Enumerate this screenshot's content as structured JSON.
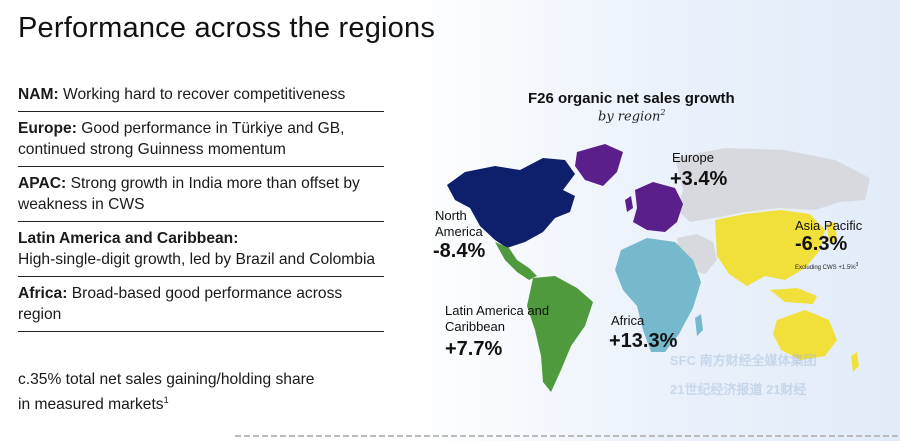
{
  "title": "Performance across the regions",
  "bullets": [
    {
      "label": "NAM:",
      "text": " Working hard to recover competitiveness"
    },
    {
      "label": "Europe:",
      "text": " Good performance in Türkiye and GB, continued strong Guinness momentum"
    },
    {
      "label": "APAC:",
      "text": " Strong growth in India more than offset by weakness in CWS"
    },
    {
      "label": "Latin America and Caribbean:",
      "text": " High-single-digit growth, led by Brazil and Colombia"
    },
    {
      "label": "Africa:",
      "text": " Broad-based good performance across region"
    }
  ],
  "share": {
    "text": "c.35% total net sales gaining/holding share in measured markets",
    "sup": "1"
  },
  "map_chart": {
    "title": "F26 organic net sales growth",
    "subtitle": "by region",
    "subtitle_sup": "2",
    "regions": [
      {
        "name": "North America",
        "value": "-8.4%",
        "color": "#0e1f6b"
      },
      {
        "name": "Europe",
        "value": "+3.4%",
        "color": "#5a1f8a"
      },
      {
        "name": "Asia Pacific",
        "value": "-6.3%",
        "note": "Excluding CWS +1.5%",
        "note_sup": "3",
        "color": "#f2e03a"
      },
      {
        "name": "Latin America and Caribbean",
        "value": "+7.7%",
        "color": "#4f9a3c"
      },
      {
        "name": "Africa",
        "value": "+13.3%",
        "color": "#76b9cc"
      }
    ],
    "other_land_color": "#d8d9df"
  },
  "watermark": {
    "line1": "SFC 南方财经全媒体集团",
    "line2": "21世纪经济报道 21财经"
  }
}
